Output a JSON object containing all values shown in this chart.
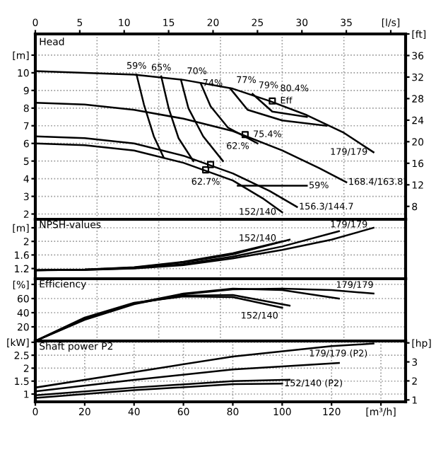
{
  "chart_data": [
    {
      "type": "line",
      "title": "Head",
      "xlim": [
        0,
        150
      ],
      "ylim": [
        1.7,
        12.2
      ],
      "yticks": [
        2,
        3,
        4,
        5,
        6,
        7,
        8,
        9,
        10,
        {
          "value": 11,
          "label": "[m]"
        }
      ],
      "y2lim": [
        5.6,
        40
      ],
      "y2ticks": [
        8,
        12,
        16,
        20,
        24,
        28,
        32,
        36,
        {
          "value": 40,
          "label": "[ft]"
        }
      ],
      "x2lim": [
        0,
        41.67
      ],
      "x2ticks": [
        0,
        5,
        10,
        15,
        20,
        25,
        30,
        35,
        {
          "value": 40,
          "label": "[l/s]"
        }
      ],
      "tick_labels": "y",
      "grid": true,
      "line_style": "solid",
      "marker": "none",
      "series": [
        {
          "name": "179/179",
          "color": "#000000",
          "x": [
            0,
            20,
            40,
            60,
            80,
            95,
            110,
            125,
            137
          ],
          "values": [
            10.1,
            10.0,
            9.9,
            9.6,
            9.1,
            8.4,
            7.6,
            6.6,
            5.5
          ]
        },
        {
          "name": "168.4/163.8",
          "color": "#000000",
          "x": [
            0,
            20,
            40,
            60,
            80,
            100,
            115,
            126
          ],
          "values": [
            8.3,
            8.2,
            7.9,
            7.4,
            6.7,
            5.6,
            4.6,
            3.8
          ]
        },
        {
          "name": "156.3/144.7",
          "color": "#000000",
          "x": [
            0,
            20,
            40,
            60,
            80,
            95,
            106
          ],
          "values": [
            6.4,
            6.3,
            6.0,
            5.3,
            4.3,
            3.3,
            2.4
          ]
        },
        {
          "name": "152/140",
          "color": "#000000",
          "x": [
            0,
            20,
            40,
            60,
            80,
            92,
            100
          ],
          "values": [
            6.0,
            5.9,
            5.6,
            4.9,
            3.9,
            2.9,
            2.1
          ]
        },
        {
          "name": "59%",
          "color": "#000000",
          "x": [
            52,
            48,
            44,
            41
          ],
          "values": [
            5.2,
            6.4,
            8.2,
            9.9
          ]
        },
        {
          "name": "65%",
          "color": "#000000",
          "x": [
            64,
            58,
            54,
            51
          ],
          "values": [
            5.0,
            6.3,
            8.0,
            9.8
          ]
        },
        {
          "name": "70%",
          "color": "#000000",
          "x": [
            76,
            68,
            62,
            59
          ],
          "values": [
            5.0,
            6.4,
            8.0,
            9.6
          ]
        },
        {
          "name": "74%",
          "color": "#000000",
          "x": [
            90,
            78,
            71,
            67
          ],
          "values": [
            6.0,
            6.9,
            8.1,
            9.4
          ]
        },
        {
          "name": "77%",
          "color": "#000000",
          "x": [
            118,
            100,
            86,
            79
          ],
          "values": [
            7.0,
            7.3,
            7.9,
            9.1
          ]
        },
        {
          "name": "79%",
          "color": "#000000",
          "x": [
            110,
            96,
            88
          ],
          "values": [
            7.5,
            7.8,
            8.8
          ]
        },
        {
          "name": "59%",
          "color": "#000000",
          "x": [
            82,
            110
          ],
          "values": [
            3.6,
            3.6
          ]
        },
        {
          "type": "scatter",
          "marker": "square",
          "color": "#000000",
          "x": [
            96,
            85,
            71,
            69
          ],
          "values": [
            8.4,
            6.5,
            4.8,
            4.5
          ]
        }
      ],
      "annotations": [
        {
          "text": "Eff",
          "x": 96,
          "y": 8.4
        },
        {
          "text": "80.4%",
          "x": 96,
          "y": 8.4
        },
        {
          "text": "75.4%",
          "x": 85,
          "y": 6.5
        },
        {
          "text": "62.%",
          "x": 71,
          "y": 4.8
        },
        {
          "text": "62.7%",
          "x": 69,
          "y": 4.5
        }
      ]
    },
    {
      "type": "line",
      "title": "NPSH-values",
      "xlim": [
        0,
        150
      ],
      "ylim": [
        0.9,
        2.65
      ],
      "yticks": [
        1.2,
        1.6,
        2,
        {
          "value": 2.4,
          "label": "[m]"
        }
      ],
      "tick_labels": "y",
      "grid": true,
      "line_style": "solid",
      "marker": "none",
      "series": [
        {
          "name": "179/179",
          "color": "#000000",
          "x": [
            0,
            20,
            40,
            60,
            80,
            100,
            120,
            137
          ],
          "values": [
            1.15,
            1.16,
            1.2,
            1.3,
            1.5,
            1.75,
            2.05,
            2.4
          ]
        },
        {
          "color": "#000000",
          "x": [
            0,
            20,
            40,
            60,
            80,
            100,
            123
          ],
          "values": [
            1.15,
            1.16,
            1.21,
            1.33,
            1.55,
            1.85,
            2.3
          ]
        },
        {
          "color": "#000000",
          "x": [
            0,
            20,
            40,
            60,
            80,
            103
          ],
          "values": [
            1.15,
            1.17,
            1.23,
            1.38,
            1.62,
            2.05
          ]
        },
        {
          "name": "152/140",
          "color": "#000000",
          "x": [
            0,
            20,
            40,
            60,
            80,
            100
          ],
          "values": [
            1.15,
            1.17,
            1.24,
            1.4,
            1.65,
            2.0
          ]
        }
      ]
    },
    {
      "type": "line",
      "title": "Efficiency",
      "xlim": [
        0,
        150
      ],
      "ylim": [
        0,
        88
      ],
      "yticks": [
        20,
        40,
        60,
        {
          "value": 80,
          "label": "[%]"
        }
      ],
      "tick_labels": "y",
      "grid": true,
      "line_style": "solid",
      "marker": "none",
      "series": [
        {
          "name": "179/179",
          "color": "#000000",
          "x": [
            0,
            20,
            40,
            60,
            80,
            100,
            120,
            137
          ],
          "values": [
            0,
            30,
            52,
            66,
            73,
            74,
            72,
            67
          ]
        },
        {
          "color": "#000000",
          "x": [
            0,
            20,
            40,
            60,
            80,
            100,
            123
          ],
          "values": [
            0,
            31,
            53,
            67,
            74,
            72,
            60
          ]
        },
        {
          "color": "#000000",
          "x": [
            0,
            20,
            40,
            60,
            80,
            103
          ],
          "values": [
            0,
            32,
            53,
            64,
            65,
            50
          ]
        },
        {
          "name": "152/140",
          "color": "#000000",
          "x": [
            0,
            20,
            40,
            60,
            80,
            100
          ],
          "values": [
            0,
            33,
            54,
            63,
            62,
            47
          ]
        }
      ]
    },
    {
      "type": "line",
      "title": "Shaft power P2",
      "xlim": [
        0,
        150
      ],
      "ylim": [
        0.7,
        3.05
      ],
      "yticks": [
        1,
        1.5,
        2,
        2.5,
        {
          "value": 3,
          "label": "[kW]"
        }
      ],
      "xticks": [
        0,
        20,
        40,
        60,
        80,
        100,
        120,
        {
          "value": 140,
          "label": "[m³/h]"
        }
      ],
      "y2lim": [
        0.9,
        4.1
      ],
      "y2ticks": [
        1,
        2,
        3,
        {
          "value": 4,
          "label": "[hp]"
        }
      ],
      "grid": true,
      "line_style": "solid",
      "marker": "none",
      "series": [
        {
          "name": "179/179 (P2)",
          "color": "#000000",
          "x": [
            0,
            40,
            80,
            120,
            137
          ],
          "values": [
            1.25,
            1.85,
            2.45,
            2.85,
            2.95
          ]
        },
        {
          "color": "#000000",
          "x": [
            0,
            40,
            80,
            123
          ],
          "values": [
            1.1,
            1.55,
            1.95,
            2.2
          ]
        },
        {
          "color": "#000000",
          "x": [
            0,
            40,
            80,
            103
          ],
          "values": [
            0.95,
            1.25,
            1.5,
            1.55
          ]
        },
        {
          "name": "152/140 (P2)",
          "color": "#000000",
          "x": [
            0,
            40,
            80,
            100
          ],
          "values": [
            0.85,
            1.15,
            1.38,
            1.4
          ]
        }
      ]
    }
  ]
}
